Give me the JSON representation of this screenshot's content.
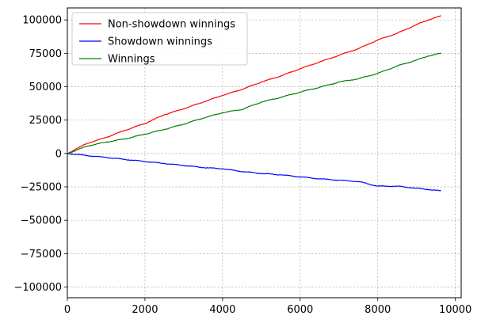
{
  "chart_data": {
    "type": "line",
    "title": "",
    "xlabel": "",
    "ylabel": "",
    "xlim": [
      0,
      10150
    ],
    "ylim": [
      -108000,
      109000
    ],
    "xticks": [
      0,
      2000,
      4000,
      6000,
      8000,
      10000
    ],
    "yticks": [
      -100000,
      -75000,
      -50000,
      -25000,
      0,
      25000,
      50000,
      75000,
      100000
    ],
    "xtick_labels": [
      "0",
      "2000",
      "4000",
      "6000",
      "8000",
      "10000"
    ],
    "ytick_labels": [
      "−100000",
      "−75000",
      "−50000",
      "−25000",
      "0",
      "25000",
      "50000",
      "75000",
      "100000"
    ],
    "grid": true,
    "legend_position": "top-left",
    "series": [
      {
        "name": "Non-showdown winnings",
        "color": "#ff0000",
        "x": [
          0,
          200,
          500,
          1000,
          1500,
          2000,
          2500,
          3000,
          3500,
          4000,
          4500,
          5000,
          5500,
          6000,
          6500,
          7000,
          7500,
          8000,
          8500,
          9000,
          9300,
          9630
        ],
        "y": [
          0,
          3000,
          7500,
          12000,
          17500,
          22500,
          29000,
          33500,
          38500,
          43500,
          48000,
          53500,
          58000,
          63500,
          68500,
          73500,
          78500,
          85000,
          90000,
          96500,
          100000,
          103000
        ]
      },
      {
        "name": "Showdown winnings",
        "color": "#0000ff",
        "x": [
          0,
          500,
          1000,
          1500,
          2000,
          2500,
          3000,
          3500,
          4000,
          4500,
          5000,
          5500,
          6000,
          6500,
          7000,
          7500,
          8000,
          8500,
          9000,
          9300,
          9630
        ],
        "y": [
          0,
          -1500,
          -3000,
          -4500,
          -6000,
          -7500,
          -9000,
          -10500,
          -11500,
          -13500,
          -15000,
          -16000,
          -17500,
          -19000,
          -20000,
          -21000,
          -24500,
          -24500,
          -26000,
          -27000,
          -28000
        ]
      },
      {
        "name": "Winnings",
        "color": "#008000",
        "x": [
          0,
          200,
          500,
          1000,
          1500,
          2000,
          2500,
          3000,
          3500,
          4000,
          4500,
          5000,
          5500,
          6000,
          6500,
          7000,
          7500,
          8000,
          8500,
          9000,
          9300,
          9630
        ],
        "y": [
          0,
          2000,
          5500,
          8500,
          11000,
          14500,
          18000,
          22000,
          26500,
          30500,
          33000,
          38500,
          42000,
          46000,
          49500,
          53500,
          56000,
          60000,
          65500,
          70000,
          73000,
          75000
        ]
      }
    ]
  }
}
